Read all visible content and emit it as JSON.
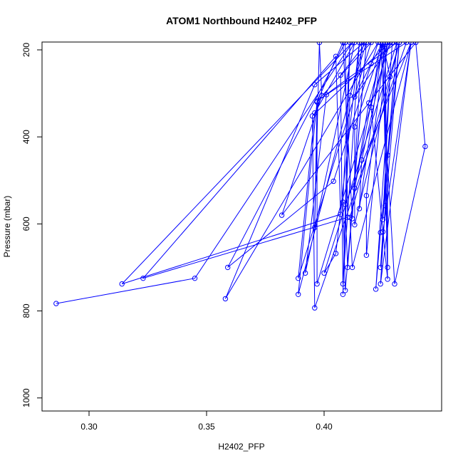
{
  "chart_data": {
    "type": "scatter",
    "title": "ATOM1 Northbound H2402_PFP",
    "xlabel": "H2402_PFP",
    "ylabel": "Pressure (mbar)",
    "xlim": [
      0.28,
      0.45
    ],
    "ylim": [
      1030,
      182
    ],
    "y_reversed": true,
    "x_ticks": [
      0.3,
      0.35,
      0.4
    ],
    "x_tick_labels": [
      "0.30",
      "0.35",
      "0.40"
    ],
    "y_ticks": [
      200,
      400,
      600,
      800,
      1000
    ],
    "y_tick_labels": [
      "200",
      "400",
      "600",
      "800",
      "1000"
    ],
    "series_color": "#0000ff",
    "grid": false,
    "points": [
      {
        "x": 0.286,
        "y": 783
      },
      {
        "x": 0.345,
        "y": 725
      },
      {
        "x": 0.412,
        "y": 183
      },
      {
        "x": 0.314,
        "y": 738
      },
      {
        "x": 0.407,
        "y": 578
      },
      {
        "x": 0.405,
        "y": 215
      },
      {
        "x": 0.323,
        "y": 725
      },
      {
        "x": 0.41,
        "y": 585
      },
      {
        "x": 0.409,
        "y": 183
      },
      {
        "x": 0.359,
        "y": 700
      },
      {
        "x": 0.404,
        "y": 502
      },
      {
        "x": 0.423,
        "y": 183
      },
      {
        "x": 0.358,
        "y": 772
      },
      {
        "x": 0.396,
        "y": 280
      },
      {
        "x": 0.417,
        "y": 183
      },
      {
        "x": 0.389,
        "y": 762
      },
      {
        "x": 0.397,
        "y": 318
      },
      {
        "x": 0.42,
        "y": 183
      },
      {
        "x": 0.389,
        "y": 725
      },
      {
        "x": 0.396,
        "y": 345
      },
      {
        "x": 0.413,
        "y": 183
      },
      {
        "x": 0.392,
        "y": 713
      },
      {
        "x": 0.401,
        "y": 303
      },
      {
        "x": 0.435,
        "y": 183
      },
      {
        "x": 0.396,
        "y": 793
      },
      {
        "x": 0.395,
        "y": 352
      },
      {
        "x": 0.428,
        "y": 183
      },
      {
        "x": 0.397,
        "y": 738
      },
      {
        "x": 0.397,
        "y": 318
      },
      {
        "x": 0.431,
        "y": 183
      },
      {
        "x": 0.4,
        "y": 713
      },
      {
        "x": 0.405,
        "y": 668
      },
      {
        "x": 0.415,
        "y": 183
      },
      {
        "x": 0.408,
        "y": 738
      },
      {
        "x": 0.407,
        "y": 258
      },
      {
        "x": 0.418,
        "y": 183
      },
      {
        "x": 0.409,
        "y": 753
      },
      {
        "x": 0.408,
        "y": 550
      },
      {
        "x": 0.411,
        "y": 183
      },
      {
        "x": 0.408,
        "y": 762
      },
      {
        "x": 0.411,
        "y": 305
      },
      {
        "x": 0.418,
        "y": 183
      },
      {
        "x": 0.41,
        "y": 700
      },
      {
        "x": 0.409,
        "y": 555
      },
      {
        "x": 0.437,
        "y": 183
      },
      {
        "x": 0.412,
        "y": 700
      },
      {
        "x": 0.411,
        "y": 585
      },
      {
        "x": 0.432,
        "y": 183
      },
      {
        "x": 0.413,
        "y": 602
      },
      {
        "x": 0.413,
        "y": 377
      },
      {
        "x": 0.425,
        "y": 183
      },
      {
        "x": 0.415,
        "y": 565
      },
      {
        "x": 0.416,
        "y": 453
      },
      {
        "x": 0.427,
        "y": 183
      },
      {
        "x": 0.418,
        "y": 672
      },
      {
        "x": 0.418,
        "y": 535
      },
      {
        "x": 0.426,
        "y": 183
      },
      {
        "x": 0.419,
        "y": 322
      },
      {
        "x": 0.413,
        "y": 518
      },
      {
        "x": 0.425,
        "y": 183
      },
      {
        "x": 0.42,
        "y": 232
      },
      {
        "x": 0.413,
        "y": 308
      },
      {
        "x": 0.429,
        "y": 183
      },
      {
        "x": 0.422,
        "y": 750
      },
      {
        "x": 0.424,
        "y": 620
      },
      {
        "x": 0.432,
        "y": 183
      },
      {
        "x": 0.424,
        "y": 700
      },
      {
        "x": 0.425,
        "y": 618
      },
      {
        "x": 0.437,
        "y": 183
      },
      {
        "x": 0.424,
        "y": 738
      },
      {
        "x": 0.426,
        "y": 558
      },
      {
        "x": 0.426,
        "y": 183
      },
      {
        "x": 0.427,
        "y": 700
      },
      {
        "x": 0.427,
        "y": 442
      },
      {
        "x": 0.431,
        "y": 183
      },
      {
        "x": 0.425,
        "y": 590
      },
      {
        "x": 0.428,
        "y": 262
      },
      {
        "x": 0.425,
        "y": 183
      },
      {
        "x": 0.427,
        "y": 727
      },
      {
        "x": 0.42,
        "y": 332
      },
      {
        "x": 0.424,
        "y": 183
      },
      {
        "x": 0.43,
        "y": 738
      },
      {
        "x": 0.443,
        "y": 422
      },
      {
        "x": 0.439,
        "y": 183
      },
      {
        "x": 0.382,
        "y": 580
      },
      {
        "x": 0.399,
        "y": 305
      },
      {
        "x": 0.398,
        "y": 183
      },
      {
        "x": 0.396,
        "y": 608
      },
      {
        "x": 0.397,
        "y": 320
      },
      {
        "x": 0.408,
        "y": 183
      },
      {
        "x": 0.412,
        "y": 588
      },
      {
        "x": 0.416,
        "y": 183
      }
    ]
  }
}
